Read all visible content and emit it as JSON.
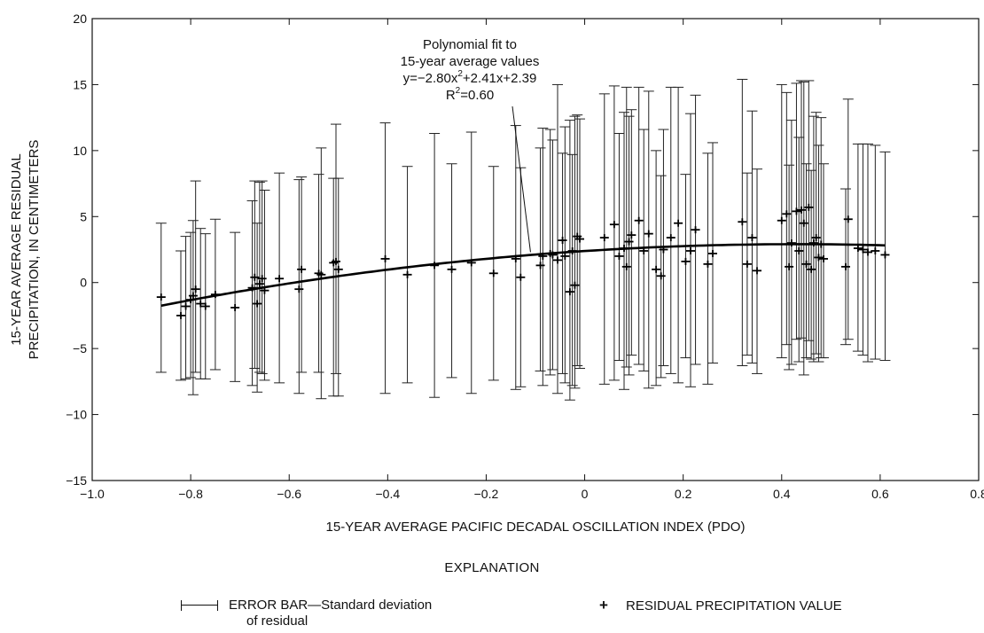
{
  "chart_data": {
    "type": "scatter",
    "title": "",
    "xlabel": "15-YEAR AVERAGE PACIFIC DECADAL OSCILLATION INDEX (PDO)",
    "ylabel_line1": "15-YEAR AVERAGE RESIDUAL",
    "ylabel_line2": "PRECIPITATION, IN CENTIMETERS",
    "xlim": [
      -1.0,
      0.8
    ],
    "ylim": [
      -15,
      20
    ],
    "xticks": [
      -1.0,
      -0.8,
      -0.6,
      -0.4,
      -0.2,
      0,
      0.2,
      0.4,
      0.6,
      0.8
    ],
    "xtick_labels": [
      "−1.0",
      "−0.8",
      "−0.6",
      "−0.4",
      "−0.2",
      "0",
      "0.2",
      "0.4",
      "0.6",
      "0.8"
    ],
    "yticks": [
      -15,
      -10,
      -5,
      0,
      5,
      10,
      15,
      20
    ],
    "ytick_labels": [
      "−15",
      "−10",
      "−5",
      "0",
      "5",
      "10",
      "15",
      "20"
    ],
    "grid": false,
    "annotation": {
      "lines": [
        "Polynomial fit to",
        "15-year average values",
        "y=−2.80x²+2.41x+2.39",
        "R²=0.60"
      ],
      "arrow_to": [
        -0.11,
        2.3
      ]
    },
    "fit": {
      "name": "Polynomial fit to 15-year average values",
      "coefficients": {
        "a": -2.8,
        "b": 2.41,
        "c": 2.39
      },
      "x_range": [
        -0.86,
        0.61
      ]
    },
    "points": [
      {
        "x": -0.86,
        "y": -1.1,
        "lo": -6.8,
        "hi": 4.5
      },
      {
        "x": -0.82,
        "y": -2.5,
        "lo": -7.4,
        "hi": 2.4
      },
      {
        "x": -0.81,
        "y": -1.8,
        "lo": -7.3,
        "hi": 3.5
      },
      {
        "x": -0.8,
        "y": -1.3,
        "lo": -7.2,
        "hi": 3.8
      },
      {
        "x": -0.795,
        "y": -1.0,
        "lo": -8.5,
        "hi": 4.7
      },
      {
        "x": -0.79,
        "y": -0.5,
        "lo": -6.8,
        "hi": 7.7
      },
      {
        "x": -0.78,
        "y": -1.6,
        "lo": -7.3,
        "hi": 4.1
      },
      {
        "x": -0.77,
        "y": -1.8,
        "lo": -7.3,
        "hi": 3.7
      },
      {
        "x": -0.75,
        "y": -0.9,
        "lo": -6.6,
        "hi": 4.8
      },
      {
        "x": -0.71,
        "y": -1.9,
        "lo": -7.5,
        "hi": 3.8
      },
      {
        "x": -0.675,
        "y": -0.4,
        "lo": -7.8,
        "hi": 6.2
      },
      {
        "x": -0.67,
        "y": 0.4,
        "lo": -6.5,
        "hi": 7.7
      },
      {
        "x": -0.665,
        "y": -1.6,
        "lo": -8.3,
        "hi": 4.5
      },
      {
        "x": -0.66,
        "y": -0.1,
        "lo": -6.8,
        "hi": 7.6
      },
      {
        "x": -0.655,
        "y": 0.3,
        "lo": -6.9,
        "hi": 7.7
      },
      {
        "x": -0.65,
        "y": -0.6,
        "lo": -7.4,
        "hi": 7.0
      },
      {
        "x": -0.62,
        "y": 0.3,
        "lo": -7.6,
        "hi": 8.3
      },
      {
        "x": -0.58,
        "y": -0.5,
        "lo": -8.4,
        "hi": 7.8
      },
      {
        "x": -0.575,
        "y": 1.0,
        "lo": -6.8,
        "hi": 8.0
      },
      {
        "x": -0.54,
        "y": 0.7,
        "lo": -6.8,
        "hi": 8.2
      },
      {
        "x": -0.535,
        "y": 0.6,
        "lo": -8.8,
        "hi": 10.2
      },
      {
        "x": -0.51,
        "y": 1.5,
        "lo": -8.6,
        "hi": 7.9
      },
      {
        "x": -0.505,
        "y": 1.6,
        "lo": -6.9,
        "hi": 12.0
      },
      {
        "x": -0.5,
        "y": 1.0,
        "lo": -8.6,
        "hi": 7.9
      },
      {
        "x": -0.405,
        "y": 1.8,
        "lo": -8.4,
        "hi": 12.1
      },
      {
        "x": -0.36,
        "y": 0.6,
        "lo": -7.6,
        "hi": 8.8
      },
      {
        "x": -0.305,
        "y": 1.3,
        "lo": -8.7,
        "hi": 11.3
      },
      {
        "x": -0.27,
        "y": 1.0,
        "lo": -7.2,
        "hi": 9.0
      },
      {
        "x": -0.23,
        "y": 1.5,
        "lo": -8.4,
        "hi": 11.4
      },
      {
        "x": -0.185,
        "y": 0.7,
        "lo": -7.4,
        "hi": 8.8
      },
      {
        "x": -0.14,
        "y": 1.8,
        "lo": -8.1,
        "hi": 11.9
      },
      {
        "x": -0.13,
        "y": 0.4,
        "lo": -7.9,
        "hi": 8.7
      },
      {
        "x": -0.09,
        "y": 1.3,
        "lo": -6.7,
        "hi": 10.2
      },
      {
        "x": -0.085,
        "y": 2.0,
        "lo": -7.8,
        "hi": 11.7
      },
      {
        "x": -0.07,
        "y": 2.2,
        "lo": -7.0,
        "hi": 11.6
      },
      {
        "x": -0.065,
        "y": 2.1,
        "lo": -6.6,
        "hi": 10.8
      },
      {
        "x": -0.055,
        "y": 1.7,
        "lo": -8.4,
        "hi": 15.0
      },
      {
        "x": -0.045,
        "y": 3.2,
        "lo": -6.9,
        "hi": 9.8
      },
      {
        "x": -0.04,
        "y": 2.0,
        "lo": -7.6,
        "hi": 11.8
      },
      {
        "x": -0.03,
        "y": -0.7,
        "lo": -8.9,
        "hi": 12.3
      },
      {
        "x": -0.025,
        "y": 2.4,
        "lo": -7.8,
        "hi": 9.7
      },
      {
        "x": -0.02,
        "y": -0.2,
        "lo": -8.0,
        "hi": 12.6
      },
      {
        "x": -0.015,
        "y": 3.5,
        "lo": -6.3,
        "hi": 12.7
      },
      {
        "x": -0.01,
        "y": 3.3,
        "lo": -6.5,
        "hi": 12.4
      },
      {
        "x": 0.04,
        "y": 3.4,
        "lo": -7.7,
        "hi": 14.3
      },
      {
        "x": 0.06,
        "y": 4.4,
        "lo": -7.4,
        "hi": 14.9
      },
      {
        "x": 0.07,
        "y": 2.0,
        "lo": -5.9,
        "hi": 11.3
      },
      {
        "x": 0.08,
        "y": 2.6,
        "lo": -8.1,
        "hi": 12.9
      },
      {
        "x": 0.085,
        "y": 1.2,
        "lo": -6.4,
        "hi": 14.8
      },
      {
        "x": 0.09,
        "y": 3.1,
        "lo": -7.0,
        "hi": 12.6
      },
      {
        "x": 0.095,
        "y": 3.6,
        "lo": -5.5,
        "hi": 13.1
      },
      {
        "x": 0.11,
        "y": 4.7,
        "lo": -6.2,
        "hi": 14.8
      },
      {
        "x": 0.12,
        "y": 2.4,
        "lo": -6.7,
        "hi": 11.6
      },
      {
        "x": 0.13,
        "y": 3.7,
        "lo": -8.0,
        "hi": 14.5
      },
      {
        "x": 0.145,
        "y": 1.0,
        "lo": -7.8,
        "hi": 10.0
      },
      {
        "x": 0.155,
        "y": 0.5,
        "lo": -7.2,
        "hi": 8.1
      },
      {
        "x": 0.16,
        "y": 2.5,
        "lo": -6.3,
        "hi": 11.6
      },
      {
        "x": 0.175,
        "y": 3.4,
        "lo": -6.9,
        "hi": 14.8
      },
      {
        "x": 0.19,
        "y": 4.5,
        "lo": -7.6,
        "hi": 14.8
      },
      {
        "x": 0.205,
        "y": 1.6,
        "lo": -5.7,
        "hi": 8.2
      },
      {
        "x": 0.215,
        "y": 2.4,
        "lo": -7.9,
        "hi": 12.8
      },
      {
        "x": 0.225,
        "y": 4.0,
        "lo": -6.2,
        "hi": 14.2
      },
      {
        "x": 0.25,
        "y": 1.4,
        "lo": -7.7,
        "hi": 9.8
      },
      {
        "x": 0.26,
        "y": 2.2,
        "lo": -6.1,
        "hi": 10.6
      },
      {
        "x": 0.32,
        "y": 4.6,
        "lo": -6.3,
        "hi": 15.4
      },
      {
        "x": 0.33,
        "y": 1.4,
        "lo": -5.5,
        "hi": 8.3
      },
      {
        "x": 0.34,
        "y": 3.4,
        "lo": -6.1,
        "hi": 13.0
      },
      {
        "x": 0.35,
        "y": 0.9,
        "lo": -6.9,
        "hi": 8.6
      },
      {
        "x": 0.4,
        "y": 4.7,
        "lo": -5.7,
        "hi": 15.0
      },
      {
        "x": 0.41,
        "y": 5.2,
        "lo": -4.7,
        "hi": 14.4
      },
      {
        "x": 0.415,
        "y": 1.2,
        "lo": -6.6,
        "hi": 8.9
      },
      {
        "x": 0.42,
        "y": 3.0,
        "lo": -6.2,
        "hi": 12.3
      },
      {
        "x": 0.43,
        "y": 5.4,
        "lo": -4.3,
        "hi": 15.1
      },
      {
        "x": 0.435,
        "y": 2.4,
        "lo": -6.0,
        "hi": 11.0
      },
      {
        "x": 0.44,
        "y": 5.5,
        "lo": -4.2,
        "hi": 15.3
      },
      {
        "x": 0.445,
        "y": 4.5,
        "lo": -7.0,
        "hi": 15.2
      },
      {
        "x": 0.45,
        "y": 1.4,
        "lo": -5.7,
        "hi": 9.0
      },
      {
        "x": 0.455,
        "y": 5.7,
        "lo": -4.4,
        "hi": 15.3
      },
      {
        "x": 0.46,
        "y": 1.0,
        "lo": -5.8,
        "hi": 8.5
      },
      {
        "x": 0.465,
        "y": 3.0,
        "lo": -6.0,
        "hi": 12.6
      },
      {
        "x": 0.47,
        "y": 3.4,
        "lo": -5.4,
        "hi": 12.9
      },
      {
        "x": 0.475,
        "y": 1.9,
        "lo": -6.0,
        "hi": 10.4
      },
      {
        "x": 0.48,
        "y": 2.9,
        "lo": -5.7,
        "hi": 12.5
      },
      {
        "x": 0.485,
        "y": 1.8,
        "lo": -5.7,
        "hi": 9.0
      },
      {
        "x": 0.53,
        "y": 1.2,
        "lo": -4.7,
        "hi": 7.1
      },
      {
        "x": 0.535,
        "y": 4.8,
        "lo": -4.3,
        "hi": 13.9
      },
      {
        "x": 0.555,
        "y": 2.6,
        "lo": -5.2,
        "hi": 10.5
      },
      {
        "x": 0.565,
        "y": 2.5,
        "lo": -5.5,
        "hi": 10.5
      },
      {
        "x": 0.575,
        "y": 2.3,
        "lo": -6.0,
        "hi": 10.5
      },
      {
        "x": 0.59,
        "y": 2.4,
        "lo": -5.8,
        "hi": 10.4
      },
      {
        "x": 0.61,
        "y": 2.1,
        "lo": -5.9,
        "hi": 9.9
      }
    ]
  },
  "legend": {
    "heading": "EXPLANATION",
    "errorbar_line1": "ERROR BAR—Standard deviation",
    "errorbar_line2": "of residual",
    "residual_label": "RESIDUAL PRECIPITATION VALUE"
  }
}
